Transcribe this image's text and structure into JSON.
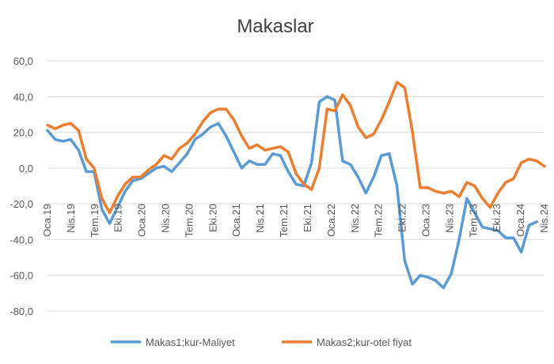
{
  "chart_data": {
    "type": "line",
    "title": "Makaslar",
    "xlabel": "",
    "ylabel": "",
    "ylim": [
      -80,
      60
    ],
    "y_ticks": [
      "60,0",
      "40,0",
      "20,0",
      "0,0",
      "-20,0",
      "-40,0",
      "-60,0",
      "-80,0"
    ],
    "y_tick_values": [
      60,
      40,
      20,
      0,
      -20,
      -40,
      -60,
      -80
    ],
    "x_tick_labels": [
      "Oca.19",
      "Nis.19",
      "Tem.19",
      "Eki.19",
      "Oca.20",
      "Nis.20",
      "Tem.20",
      "Eki.20",
      "Oca.21",
      "Nis.21",
      "Tem.21",
      "Eki.21",
      "Oca.22",
      "Nis.22",
      "Tem.22",
      "Eki.22",
      "Oca.23",
      "Nis.23",
      "Tem.23",
      "Eki.23",
      "Oca.24",
      "Nis.24"
    ],
    "grid": true,
    "legend_position": "bottom",
    "series": [
      {
        "name": "Makas1;kur-Maliyet",
        "color": "#5b9bd5",
        "values": [
          21,
          16,
          15,
          16,
          10,
          -2,
          -2,
          -23,
          -31,
          -22,
          -13,
          -7,
          -6,
          -3,
          0,
          1,
          -2,
          3,
          8,
          16,
          19,
          23,
          25,
          18,
          9,
          0,
          4,
          2,
          2,
          8,
          7,
          -2,
          -9,
          -10,
          3,
          37,
          40,
          38,
          4,
          2,
          -5,
          -14,
          -5,
          7,
          8,
          -10,
          -52,
          -65,
          -60,
          -61,
          -63,
          -67,
          -59,
          -40,
          -17,
          -25,
          -33,
          -34,
          -35,
          -39,
          -39,
          -47,
          -32,
          -30
        ]
      },
      {
        "name": "Makas2;kur-otel fiyat",
        "color": "#ed7d31",
        "values": [
          24,
          22,
          24,
          25,
          21,
          5,
          0,
          -17,
          -25,
          -16,
          -9,
          -5,
          -5,
          -1,
          2,
          7,
          5,
          11,
          14,
          19,
          26,
          31,
          33,
          33,
          27,
          18,
          11,
          13,
          10,
          11,
          12,
          9,
          -3,
          -9,
          -12,
          0,
          33,
          32,
          41,
          35,
          23,
          17,
          19,
          27,
          37,
          48,
          45,
          20,
          -11,
          -11,
          -13,
          -14,
          -13,
          -16,
          -8,
          -10,
          -17,
          -22,
          -14,
          -8,
          -6,
          3,
          5,
          4,
          1
        ]
      }
    ]
  }
}
